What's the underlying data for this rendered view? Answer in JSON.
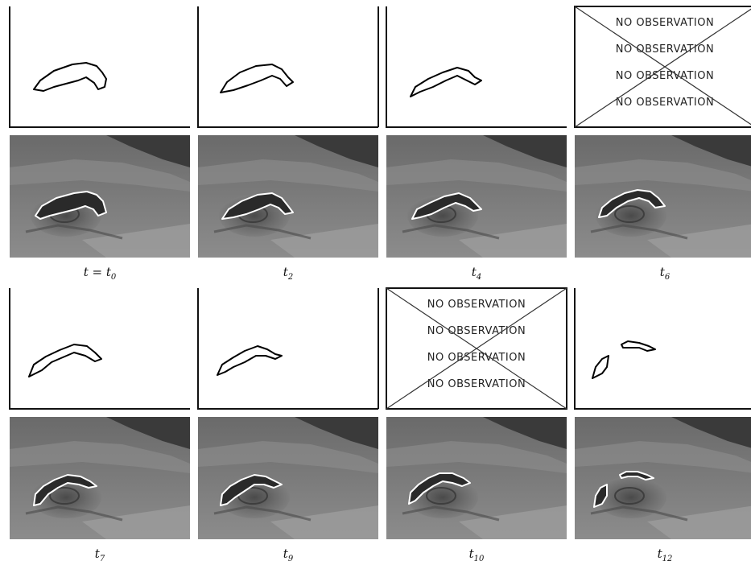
{
  "figure": {
    "panels": [
      {
        "label_base": "t = t",
        "label_sub": "0",
        "observed": true
      },
      {
        "label_base": "t",
        "label_sub": "2",
        "observed": true
      },
      {
        "label_base": "t",
        "label_sub": "4",
        "observed": true
      },
      {
        "label_base": "t",
        "label_sub": "6",
        "observed": false
      },
      {
        "label_base": "t",
        "label_sub": "7",
        "observed": true
      },
      {
        "label_base": "t",
        "label_sub": "9",
        "observed": true
      },
      {
        "label_base": "t",
        "label_sub": "10",
        "observed": false
      },
      {
        "label_base": "t",
        "label_sub": "12",
        "observed": true
      }
    ],
    "no_observation_text": "NO OBSERVATION",
    "colors": {
      "contour": "#000000",
      "overlay_contour": "#ffffff",
      "satellite_base": "#7a7a7a",
      "dark_cloud": "#3a3a3a"
    }
  }
}
